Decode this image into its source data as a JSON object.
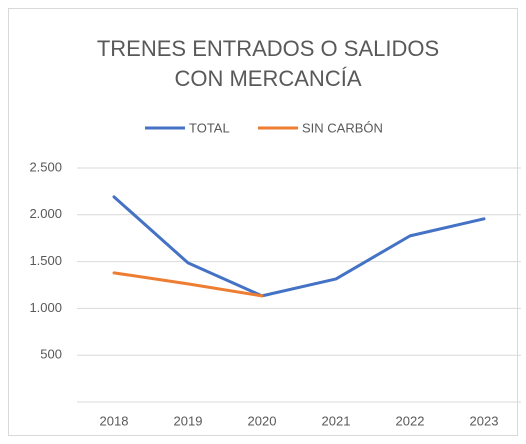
{
  "chart_data": {
    "type": "line",
    "title": [
      "TRENES ENTRADOS O SALIDOS",
      "CON MERCANCÍA"
    ],
    "categories": [
      "2018",
      "2019",
      "2020",
      "2021",
      "2022",
      "2023"
    ],
    "series": [
      {
        "name": "TOTAL",
        "color": "#4472c4",
        "values": [
          2192,
          1486,
          1134,
          1315,
          1775,
          1957
        ]
      },
      {
        "name": "SIN CARBÓN",
        "color": "#ed7d31",
        "values": [
          1380,
          1262,
          1134,
          null,
          null,
          null
        ]
      }
    ],
    "ylim": [
      0,
      2500
    ],
    "yticks": [
      500,
      {
        "value": 1000,
        "label": "1.000"
      },
      {
        "value": 1500,
        "label": "1.500"
      },
      {
        "value": 2000,
        "label": "2.000"
      },
      {
        "value": 2500,
        "label": "2.500"
      }
    ],
    "grid": true,
    "legend": "top"
  }
}
